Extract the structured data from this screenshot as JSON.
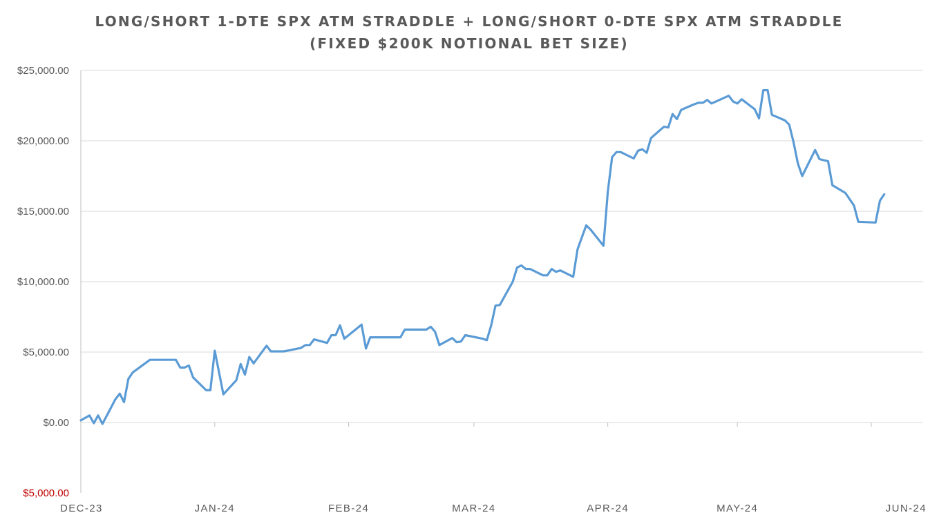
{
  "chart_data": {
    "type": "line",
    "title": "LONG/SHORT 1-DTE SPX ATM STRADDLE + LONG/SHORT 0-DTE SPX ATM STRADDLE",
    "subtitle": "(FIXED $200K NOTIONAL BET SIZE)",
    "xlabel": "",
    "ylabel": "",
    "ylim": [
      -5000,
      25000
    ],
    "y_ticks": [
      {
        "value": 25000,
        "label": "$25,000.00"
      },
      {
        "value": 20000,
        "label": "$20,000.00"
      },
      {
        "value": 15000,
        "label": "$15,000.00"
      },
      {
        "value": 10000,
        "label": "$10,000.00"
      },
      {
        "value": 5000,
        "label": "$5,000.00"
      },
      {
        "value": 0,
        "label": "$0.00"
      },
      {
        "value": -5000,
        "label": "$5,000.00"
      }
    ],
    "x_range": [
      "2023-12-01",
      "2024-06-13"
    ],
    "x_ticks": [
      {
        "date": "2023-12-01",
        "label": "DEC-23"
      },
      {
        "date": "2024-01-01",
        "label": "JAN-24"
      },
      {
        "date": "2024-02-01",
        "label": "FEB-24"
      },
      {
        "date": "2024-03-01",
        "label": "MAR-24"
      },
      {
        "date": "2024-04-01",
        "label": "APR-24"
      },
      {
        "date": "2024-05-01",
        "label": "MAY-24"
      },
      {
        "date": "2024-06-01",
        "label": "JUN-24"
      }
    ],
    "grid": true,
    "legend": "none",
    "colors": {
      "series": "#5b9bd5",
      "negative_label": "#c00000",
      "text": "#595959",
      "grid": "#d9d9d9"
    },
    "series": [
      {
        "points": [
          [
            "2023-12-01",
            150
          ],
          [
            "2023-12-03",
            500
          ],
          [
            "2023-12-04",
            -50
          ],
          [
            "2023-12-05",
            500
          ],
          [
            "2023-12-06",
            -100
          ],
          [
            "2023-12-09",
            1650
          ],
          [
            "2023-12-10",
            2050
          ],
          [
            "2023-12-11",
            1450
          ],
          [
            "2023-12-12",
            3100
          ],
          [
            "2023-12-13",
            3550
          ],
          [
            "2023-12-17",
            4450
          ],
          [
            "2023-12-23",
            4450
          ],
          [
            "2023-12-24",
            3900
          ],
          [
            "2023-12-25",
            3900
          ],
          [
            "2023-12-26",
            4050
          ],
          [
            "2023-12-27",
            3200
          ],
          [
            "2023-12-30",
            2300
          ],
          [
            "2023-12-31",
            2300
          ],
          [
            "2024-01-01",
            5100
          ],
          [
            "2024-01-03",
            2000
          ],
          [
            "2024-01-06",
            3000
          ],
          [
            "2024-01-07",
            4150
          ],
          [
            "2024-01-08",
            3400
          ],
          [
            "2024-01-09",
            4650
          ],
          [
            "2024-01-10",
            4200
          ],
          [
            "2024-01-13",
            5450
          ],
          [
            "2024-01-14",
            5050
          ],
          [
            "2024-01-17",
            5050
          ],
          [
            "2024-01-21",
            5300
          ],
          [
            "2024-01-22",
            5500
          ],
          [
            "2024-01-23",
            5500
          ],
          [
            "2024-01-24",
            5900
          ],
          [
            "2024-01-27",
            5650
          ],
          [
            "2024-01-28",
            6200
          ],
          [
            "2024-01-29",
            6200
          ],
          [
            "2024-01-30",
            6900
          ],
          [
            "2024-01-31",
            5950
          ],
          [
            "2024-02-04",
            6950
          ],
          [
            "2024-02-05",
            5250
          ],
          [
            "2024-02-06",
            6050
          ],
          [
            "2024-02-13",
            6050
          ],
          [
            "2024-02-14",
            6600
          ],
          [
            "2024-02-19",
            6600
          ],
          [
            "2024-02-20",
            6800
          ],
          [
            "2024-02-21",
            6450
          ],
          [
            "2024-02-22",
            5500
          ],
          [
            "2024-02-25",
            6000
          ],
          [
            "2024-02-26",
            5700
          ],
          [
            "2024-02-27",
            5750
          ],
          [
            "2024-02-28",
            6200
          ],
          [
            "2024-03-03",
            5950
          ],
          [
            "2024-03-04",
            5850
          ],
          [
            "2024-03-05",
            6900
          ],
          [
            "2024-03-06",
            8300
          ],
          [
            "2024-03-07",
            8350
          ],
          [
            "2024-03-10",
            10000
          ],
          [
            "2024-03-11",
            11000
          ],
          [
            "2024-03-12",
            11150
          ],
          [
            "2024-03-13",
            10900
          ],
          [
            "2024-03-14",
            10900
          ],
          [
            "2024-03-17",
            10450
          ],
          [
            "2024-03-18",
            10450
          ],
          [
            "2024-03-19",
            10900
          ],
          [
            "2024-03-20",
            10700
          ],
          [
            "2024-03-21",
            10800
          ],
          [
            "2024-03-24",
            10350
          ],
          [
            "2024-03-25",
            12300
          ],
          [
            "2024-03-27",
            14000
          ],
          [
            "2024-03-28",
            13700
          ],
          [
            "2024-03-31",
            12550
          ],
          [
            "2024-04-01",
            16400
          ],
          [
            "2024-04-02",
            18850
          ],
          [
            "2024-04-03",
            19200
          ],
          [
            "2024-04-04",
            19200
          ],
          [
            "2024-04-07",
            18750
          ],
          [
            "2024-04-08",
            19300
          ],
          [
            "2024-04-09",
            19400
          ],
          [
            "2024-04-10",
            19150
          ],
          [
            "2024-04-11",
            20200
          ],
          [
            "2024-04-14",
            21000
          ],
          [
            "2024-04-15",
            20950
          ],
          [
            "2024-04-16",
            21900
          ],
          [
            "2024-04-17",
            21550
          ],
          [
            "2024-04-18",
            22200
          ],
          [
            "2024-04-21",
            22600
          ],
          [
            "2024-04-22",
            22700
          ],
          [
            "2024-04-23",
            22700
          ],
          [
            "2024-04-24",
            22900
          ],
          [
            "2024-04-25",
            22650
          ],
          [
            "2024-04-29",
            23200
          ],
          [
            "2024-04-30",
            22800
          ],
          [
            "2024-05-01",
            22650
          ],
          [
            "2024-05-02",
            22950
          ],
          [
            "2024-05-05",
            22250
          ],
          [
            "2024-05-06",
            21600
          ],
          [
            "2024-05-07",
            23600
          ],
          [
            "2024-05-08",
            23600
          ],
          [
            "2024-05-09",
            21850
          ],
          [
            "2024-05-12",
            21450
          ],
          [
            "2024-05-13",
            21150
          ],
          [
            "2024-05-14",
            19900
          ],
          [
            "2024-05-15",
            18400
          ],
          [
            "2024-05-16",
            17500
          ],
          [
            "2024-05-19",
            19350
          ],
          [
            "2024-05-20",
            18700
          ],
          [
            "2024-05-22",
            18550
          ],
          [
            "2024-05-23",
            16850
          ],
          [
            "2024-05-26",
            16300
          ],
          [
            "2024-05-28",
            15400
          ],
          [
            "2024-05-29",
            14250
          ],
          [
            "2024-06-02",
            14200
          ],
          [
            "2024-06-03",
            15750
          ],
          [
            "2024-06-04",
            16200
          ]
        ]
      }
    ]
  }
}
